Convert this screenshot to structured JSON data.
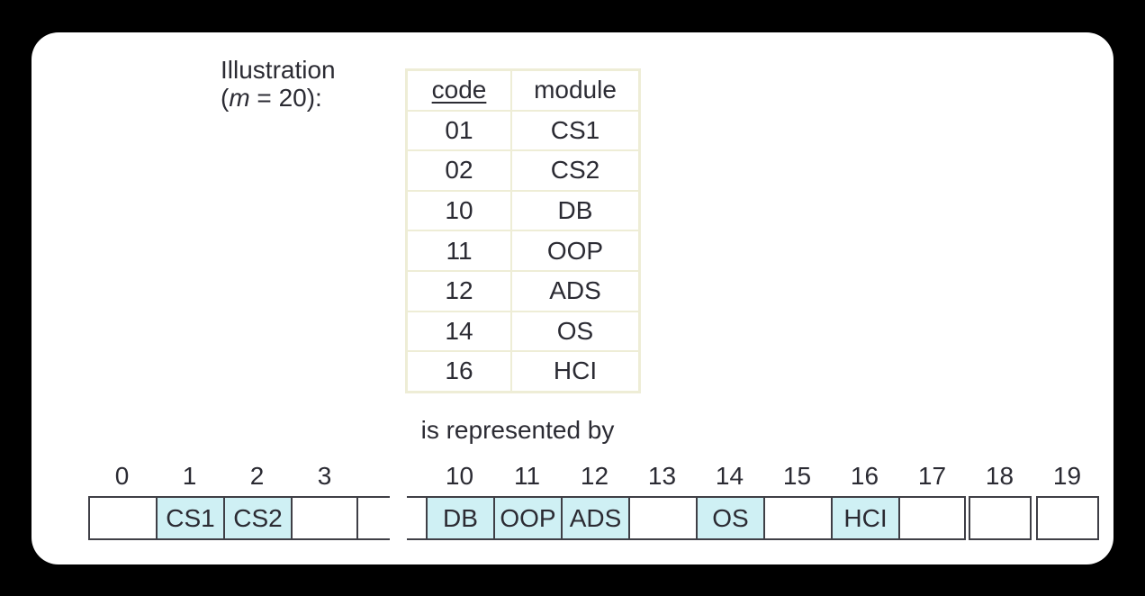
{
  "title": {
    "line1": "Illustration",
    "line2_open": "(",
    "line2_var": "m",
    "line2_rest": " = 20):"
  },
  "code_table": {
    "header": {
      "code": "code",
      "module": "module"
    },
    "rows": [
      {
        "code": "01",
        "module": "CS1"
      },
      {
        "code": "02",
        "module": "CS2"
      },
      {
        "code": "10",
        "module": "DB"
      },
      {
        "code": "11",
        "module": "OOP"
      },
      {
        "code": "12",
        "module": "ADS"
      },
      {
        "code": "14",
        "module": "OS"
      },
      {
        "code": "16",
        "module": "HCI"
      }
    ]
  },
  "connector": {
    "text": "is represented by"
  },
  "array": {
    "size_note": "m = 20",
    "left_cells": [
      {
        "index": "0",
        "value": "",
        "highlighted": false
      },
      {
        "index": "1",
        "value": "CS1",
        "highlighted": true
      },
      {
        "index": "2",
        "value": "CS2",
        "highlighted": true
      },
      {
        "index": "3",
        "value": "",
        "highlighted": false
      }
    ],
    "right_cells": [
      {
        "index": "10",
        "value": "DB",
        "highlighted": true
      },
      {
        "index": "11",
        "value": "OOP",
        "highlighted": true
      },
      {
        "index": "12",
        "value": "ADS",
        "highlighted": true
      },
      {
        "index": "13",
        "value": "",
        "highlighted": false
      },
      {
        "index": "14",
        "value": "OS",
        "highlighted": true
      },
      {
        "index": "15",
        "value": "",
        "highlighted": false
      },
      {
        "index": "16",
        "value": "HCI",
        "highlighted": true
      },
      {
        "index": "17",
        "value": "",
        "highlighted": false
      },
      {
        "index": "18",
        "value": "",
        "highlighted": false
      },
      {
        "index": "19",
        "value": "",
        "highlighted": false
      }
    ]
  },
  "colors": {
    "page_bg": "#000000",
    "card_bg": "#ffffff",
    "text_color": "#2b2b33",
    "table_line": "#eeedd6",
    "cell_border": "#3f3f46",
    "highlight": "#cff0f4"
  }
}
